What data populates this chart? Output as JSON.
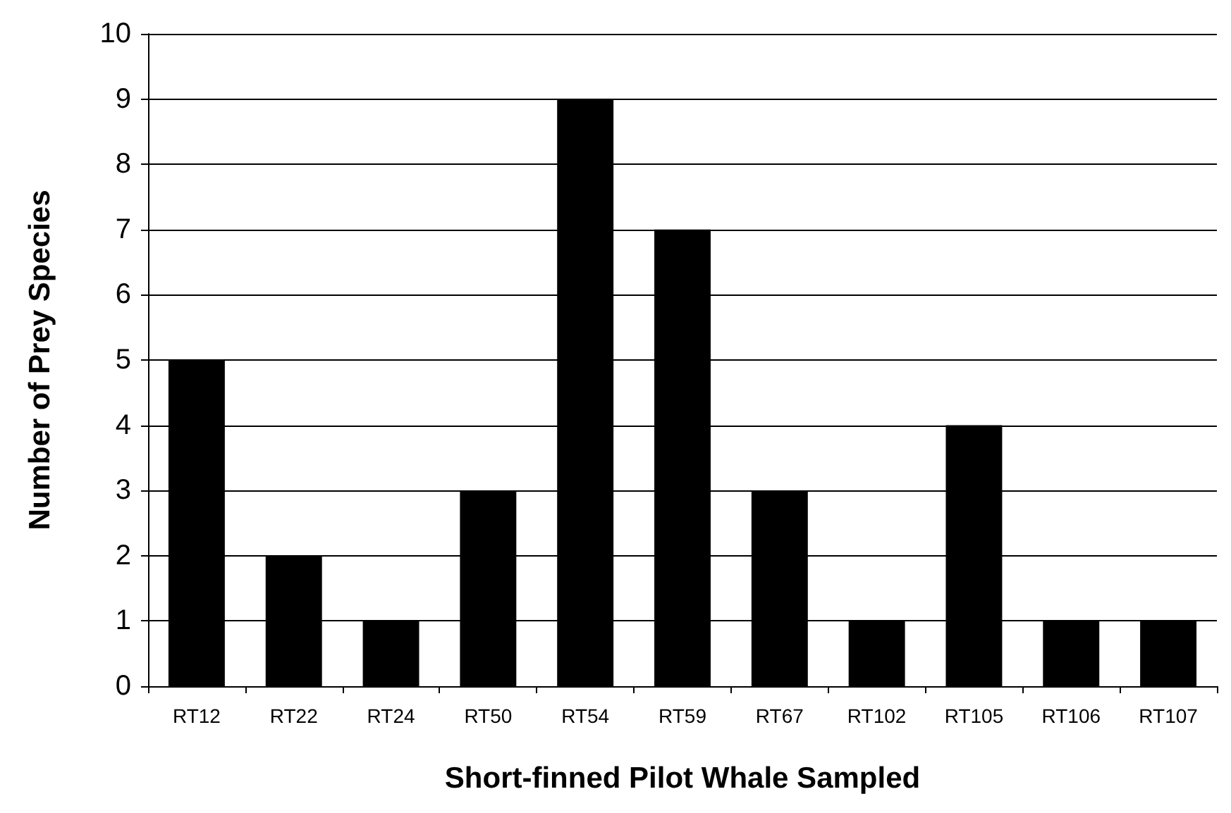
{
  "chart_data": {
    "type": "bar",
    "xlabel": "Short-finned Pilot Whale Sampled",
    "ylabel": "Number of Prey Species",
    "categories": [
      "RT12",
      "RT22",
      "RT24",
      "RT50",
      "RT54",
      "RT59",
      "RT67",
      "RT102",
      "RT105",
      "RT106",
      "RT107"
    ],
    "values": [
      5,
      2,
      1,
      3,
      9,
      7,
      3,
      1,
      4,
      1,
      1
    ],
    "color": "#000000",
    "ylim": [
      0,
      10
    ],
    "yticks": [
      0,
      1,
      2,
      3,
      4,
      5,
      6,
      7,
      8,
      9,
      10
    ],
    "grid": "y"
  }
}
